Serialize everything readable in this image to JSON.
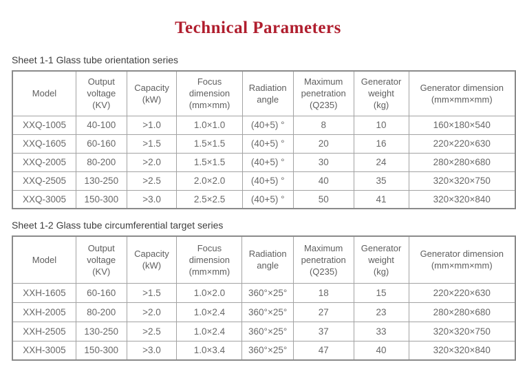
{
  "title": "Technical Parameters",
  "colors": {
    "title_red": "#b01e2e",
    "table_text_gray": "#686868",
    "border_gray": "#a2a2a2"
  },
  "tables": [
    {
      "caption": "Sheet 1-1 Glass tube orientation series",
      "columns": [
        "Model",
        "Output\nvoltage\n(KV)",
        "Capacity\n(kW)",
        "Focus\ndimension\n(mm×mm)",
        "Radiation\nangle",
        "Maximum\npenetration\n(Q235)",
        "Generator\nweight\n(kg)",
        "Generator dimension\n(mm×mm×mm)"
      ],
      "rows": [
        [
          "XXQ-1005",
          "40-100",
          ">1.0",
          "1.0×1.0",
          "(40+5) °",
          "8",
          "10",
          "160×180×540"
        ],
        [
          "XXQ-1605",
          "60-160",
          ">1.5",
          "1.5×1.5",
          "(40+5) °",
          "20",
          "16",
          "220×220×630"
        ],
        [
          "XXQ-2005",
          "80-200",
          ">2.0",
          "1.5×1.5",
          "(40+5) °",
          "30",
          "24",
          "280×280×680"
        ],
        [
          "XXQ-2505",
          "130-250",
          ">2.5",
          "2.0×2.0",
          "(40+5) °",
          "40",
          "35",
          "320×320×750"
        ],
        [
          "XXQ-3005",
          "150-300",
          ">3.0",
          "2.5×2.5",
          "(40+5) °",
          "50",
          "41",
          "320×320×840"
        ]
      ]
    },
    {
      "caption": "Sheet 1-2 Glass tube circumferential target series",
      "columns": [
        "Model",
        "Output\nvoltage\n(KV)",
        "Capacity\n(kW)",
        "Focus\ndimension\n(mm×mm)",
        "Radiation\nangle",
        "Maximum\npenetration\n(Q235)",
        "Generator\nweight\n(kg)",
        "Generator dimension\n(mm×mm×mm)"
      ],
      "rows": [
        [
          "XXH-1605",
          "60-160",
          ">1.5",
          "1.0×2.0",
          "360°×25°",
          "18",
          "15",
          "220×220×630"
        ],
        [
          "XXH-2005",
          "80-200",
          ">2.0",
          "1.0×2.4",
          "360°×25°",
          "27",
          "23",
          "280×280×680"
        ],
        [
          "XXH-2505",
          "130-250",
          ">2.5",
          "1.0×2.4",
          "360°×25°",
          "37",
          "33",
          "320×320×750"
        ],
        [
          "XXH-3005",
          "150-300",
          ">3.0",
          "1.0×3.4",
          "360°×25°",
          "47",
          "40",
          "320×320×840"
        ]
      ]
    }
  ]
}
